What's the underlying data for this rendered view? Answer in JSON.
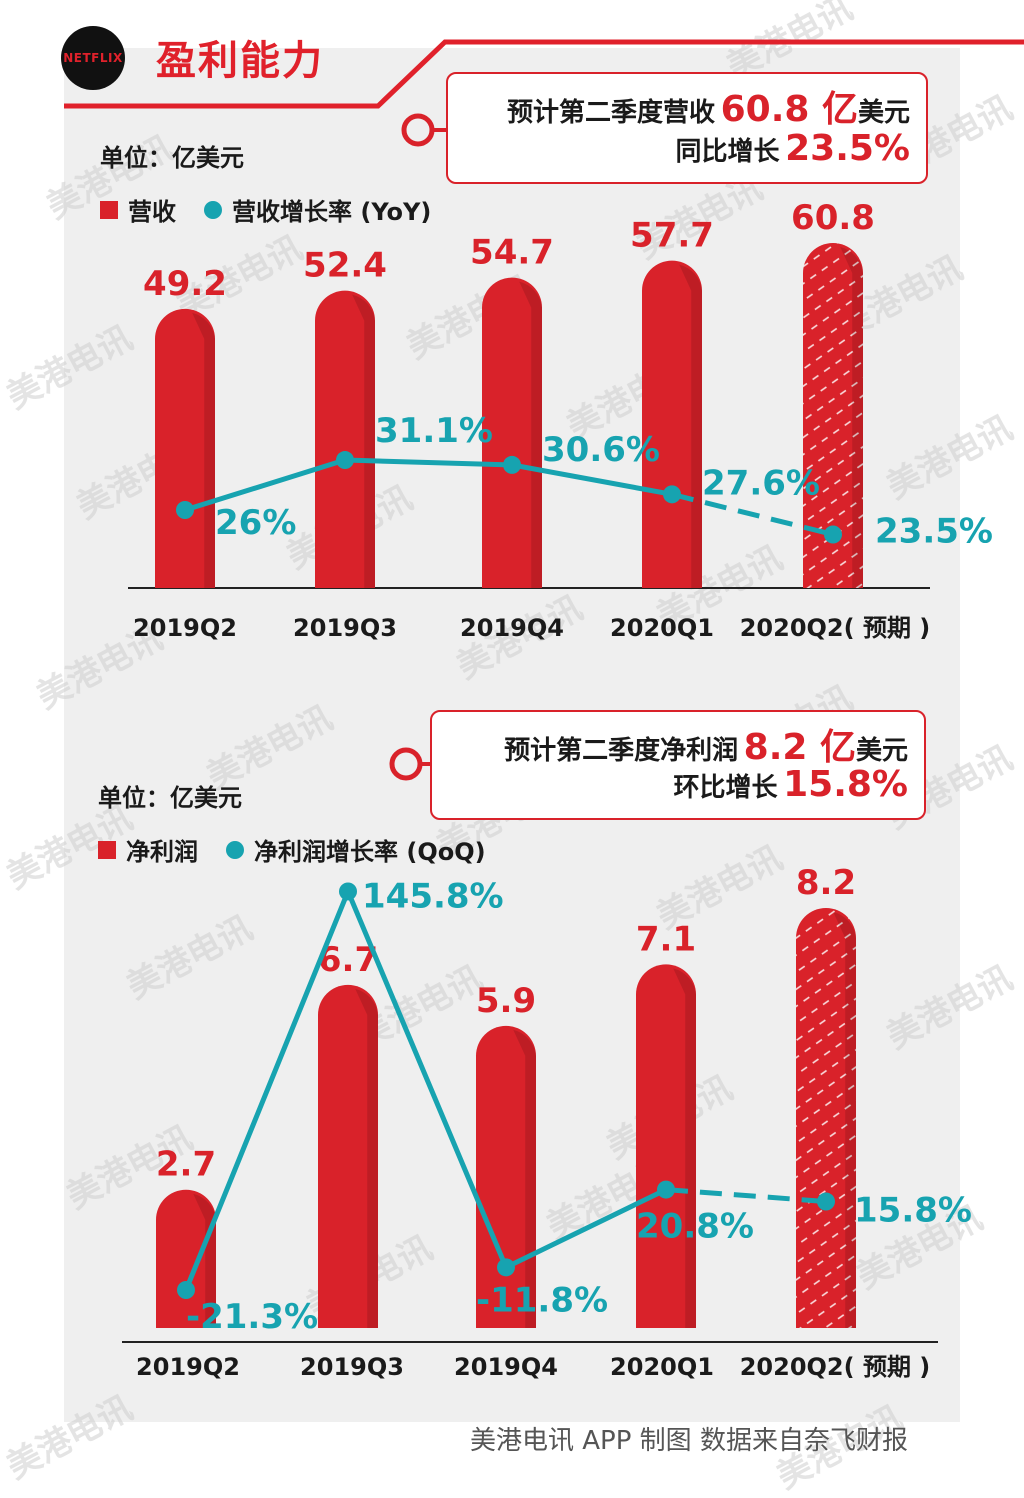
{
  "header": {
    "logo_text": "NETFLIX",
    "title": "盈利能力"
  },
  "callout1": {
    "line1_prefix": "预计第二季度营收",
    "line1_value": "60.8 亿",
    "line1_suffix": "美元",
    "line2_prefix": "同比增长",
    "line2_value": "23.5%"
  },
  "callout2": {
    "line1_prefix": "预计第二季度净利润",
    "line1_value": "8.2 亿",
    "line1_suffix": "美元",
    "line2_prefix": "环比增长",
    "line2_value": "15.8%"
  },
  "chart1_text": {
    "unit": "单位：亿美元",
    "legend_bar": "营收",
    "legend_line": "营收增长率 (YoY)"
  },
  "chart2_text": {
    "unit": "单位：亿美元",
    "legend_bar": "净利润",
    "legend_line": "净利润增长率 (QoQ)"
  },
  "footer": "美港电讯 APP 制图 数据来自奈飞财报",
  "watermark": "美港电讯",
  "colors": {
    "red": "#d9222a",
    "teal": "#17a3b0"
  },
  "chart_data": [
    {
      "type": "bar",
      "categories": [
        "2019Q2",
        "2019Q3",
        "2019Q4",
        "2020Q1",
        "2020Q2( 预期 )"
      ],
      "series": [
        {
          "name": "营收",
          "values": [
            49.2,
            52.4,
            54.7,
            57.7,
            60.8
          ],
          "labels": [
            "49.2",
            "52.4",
            "54.7",
            "57.7",
            "60.8"
          ]
        },
        {
          "name": "营收增长率 (YoY)",
          "type": "line",
          "values": [
            26,
            31.1,
            30.6,
            27.6,
            23.5
          ],
          "labels": [
            "26%",
            "31.1%",
            "30.6%",
            "27.6%",
            "23.5%"
          ]
        }
      ],
      "forecast_index": 4
    },
    {
      "type": "bar",
      "categories": [
        "2019Q2",
        "2019Q3",
        "2019Q4",
        "2020Q1",
        "2020Q2( 预期 )"
      ],
      "series": [
        {
          "name": "净利润",
          "values": [
            2.7,
            6.7,
            5.9,
            7.1,
            8.2
          ],
          "labels": [
            "2.7",
            "6.7",
            "5.9",
            "7.1",
            "8.2"
          ]
        },
        {
          "name": "净利润增长率 (QoQ)",
          "type": "line",
          "values": [
            -21.3,
            145.8,
            -11.8,
            20.8,
            15.8
          ],
          "labels": [
            "-21.3%",
            "145.8%",
            "-11.8%",
            "20.8%",
            "15.8%"
          ]
        }
      ],
      "forecast_index": 4
    }
  ]
}
